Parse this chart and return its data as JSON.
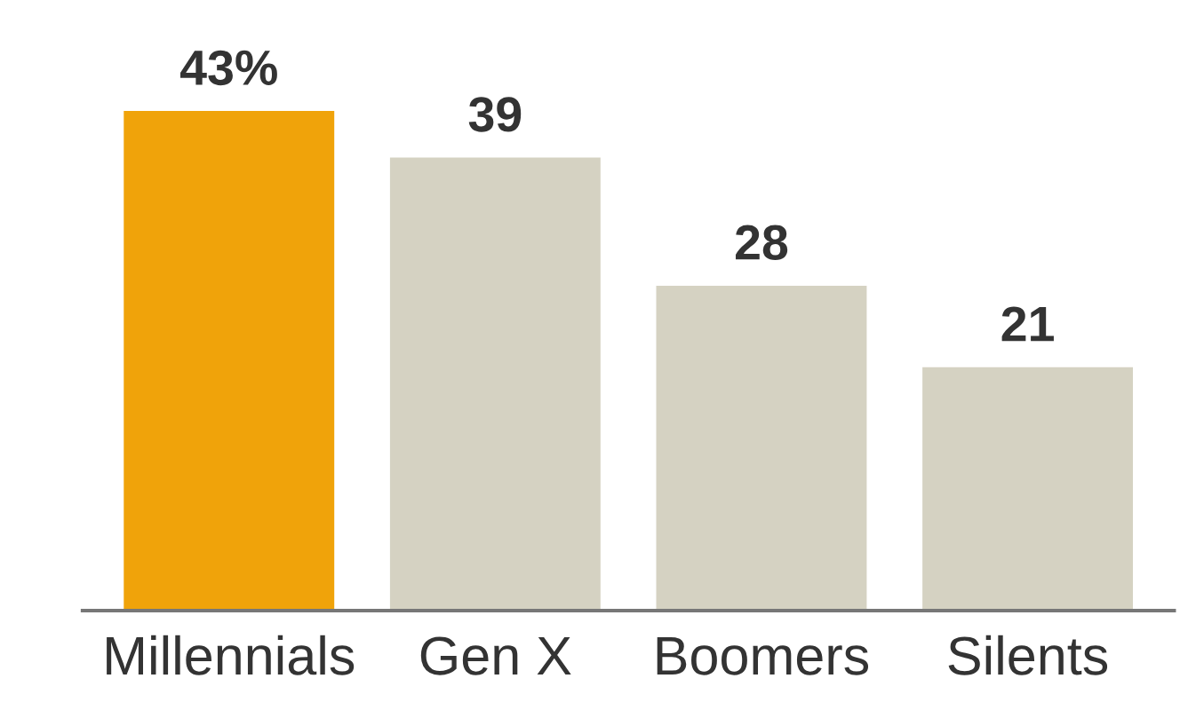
{
  "chart_data": {
    "type": "bar",
    "categories": [
      "Millennials",
      "Gen X",
      "Boomers",
      "Silents"
    ],
    "values": [
      43,
      39,
      28,
      21
    ],
    "colors": [
      "#f0a30a",
      "#d5d2c2",
      "#d5d2c2",
      "#d5d2c2"
    ],
    "value_labels": [
      "43%",
      "39",
      "28",
      "21"
    ],
    "grid": false,
    "legend": false
  }
}
